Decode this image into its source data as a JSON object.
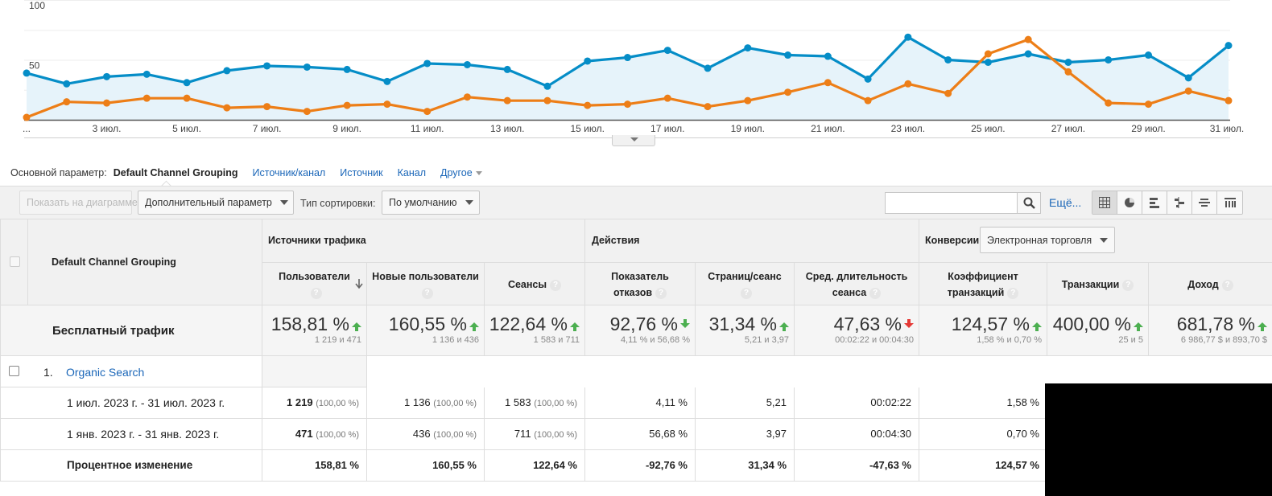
{
  "chart_data": {
    "type": "line",
    "ylim": [
      0,
      100
    ],
    "y_ticks": [
      "100",
      "50"
    ],
    "x_tick_labels": [
      "...",
      "3 июл.",
      "5 июл.",
      "7 июл.",
      "9 июл.",
      "11 июл.",
      "13 июл.",
      "15 июл.",
      "17 июл.",
      "19 июл.",
      "21 июл.",
      "23 июл.",
      "25 июл.",
      "27 июл.",
      "29 июл.",
      "31 июл."
    ],
    "x": [
      1,
      2,
      3,
      4,
      5,
      6,
      7,
      8,
      9,
      10,
      11,
      12,
      13,
      14,
      15,
      16,
      17,
      18,
      19,
      20,
      21,
      22,
      23,
      24,
      25,
      26,
      27,
      28,
      29,
      30,
      31
    ],
    "series": [
      {
        "color": "#058dc7",
        "area": true,
        "values": [
          39,
          30,
          36,
          38,
          31,
          41,
          45,
          44,
          42,
          32,
          47,
          46,
          42,
          28,
          49,
          52,
          58,
          43,
          60,
          54,
          53,
          34,
          69,
          50,
          48,
          55,
          48,
          50,
          54,
          35,
          62
        ]
      },
      {
        "color": "#ed7e17",
        "values": [
          2,
          15,
          14,
          18,
          18,
          10,
          11,
          7,
          12,
          13,
          7,
          19,
          16,
          16,
          12,
          13,
          18,
          11,
          16,
          23,
          31,
          16,
          30,
          22,
          55,
          67,
          40,
          14,
          13,
          24,
          16
        ]
      }
    ]
  },
  "params": {
    "label": "Основной параметр:",
    "active": "Default Channel Grouping",
    "links": [
      "Источник/канал",
      "Источник",
      "Канал"
    ],
    "other": "Другое"
  },
  "toolbar": {
    "plot_button": "Показать на диаграмме",
    "secondary_dim": "Дополнительный параметр",
    "sort_label": "Тип сортировки:",
    "sort_value": "По умолчанию",
    "search_value": "",
    "more": "Ещё..."
  },
  "table": {
    "dim_header": "Default Channel Grouping",
    "groups": {
      "acquisition": "Источники трафика",
      "behavior": "Действия",
      "conversions": "Конверсии",
      "conversion_select": "Электронная торговля"
    },
    "cols": [
      {
        "l1": "Пользователи",
        "l2": ""
      },
      {
        "l1": "Новые пользователи",
        "l2": ""
      },
      {
        "l1": "Сеансы",
        "l2": ""
      },
      {
        "l1": "Показатель",
        "l2": "отказов"
      },
      {
        "l1": "Страниц/сеанс",
        "l2": ""
      },
      {
        "l1": "Сред. длительность",
        "l2": "сеанса"
      },
      {
        "l1": "Коэффициент",
        "l2": "транзакций"
      },
      {
        "l1": "Транзакции",
        "l2": ""
      },
      {
        "l1": "Доход",
        "l2": ""
      }
    ],
    "summary": {
      "label": "Бесплатный трафик",
      "cells": [
        {
          "big": "158,81 %",
          "sub": "1 219 и 471",
          "trend": "up"
        },
        {
          "big": "160,55 %",
          "sub": "1 136 и 436",
          "trend": "up"
        },
        {
          "big": "122,64 %",
          "sub": "1 583 и 711",
          "trend": "up"
        },
        {
          "big": "92,76 %",
          "sub": "4,11 % и 56,68 %",
          "trend": "down-good"
        },
        {
          "big": "31,34 %",
          "sub": "5,21 и 3,97",
          "trend": "up"
        },
        {
          "big": "47,63 %",
          "sub": "00:02:22 и 00:04:30",
          "trend": "down-bad"
        },
        {
          "big": "124,57 %",
          "sub": "1,58 % и 0,70 %",
          "trend": "up"
        },
        {
          "big": "400,00 %",
          "sub": "25 и 5",
          "trend": "up"
        },
        {
          "big": "681,78 %",
          "sub": "6 986,77 $ и 893,70 $",
          "trend": "up"
        }
      ]
    },
    "row1": {
      "index": "1.",
      "link": "Organic Search"
    },
    "period1": {
      "label": "1 июл. 2023 г. - 31 июл. 2023 г.",
      "vals": [
        {
          "v": "1 219",
          "p": "(100,00 %)"
        },
        {
          "v": "1 136",
          "p": "(100,00 %)"
        },
        {
          "v": "1 583",
          "p": "(100,00 %)"
        },
        {
          "v": "4,11 %",
          "p": ""
        },
        {
          "v": "5,21",
          "p": ""
        },
        {
          "v": "00:02:22",
          "p": ""
        },
        {
          "v": "1,58 %",
          "p": ""
        }
      ]
    },
    "period2": {
      "label": "1 янв. 2023 г. - 31 янв. 2023 г.",
      "vals": [
        {
          "v": "471",
          "p": "(100,00 %)"
        },
        {
          "v": "436",
          "p": "(100,00 %)"
        },
        {
          "v": "711",
          "p": "(100,00 %)"
        },
        {
          "v": "56,68 %",
          "p": ""
        },
        {
          "v": "3,97",
          "p": ""
        },
        {
          "v": "00:04:30",
          "p": ""
        },
        {
          "v": "0,70 %",
          "p": ""
        }
      ]
    },
    "change": {
      "label": "Процентное изменение",
      "vals": [
        "158,81 %",
        "160,55 %",
        "122,64 %",
        "-92,76 %",
        "31,34 %",
        "-47,63 %",
        "124,57 %"
      ]
    }
  }
}
